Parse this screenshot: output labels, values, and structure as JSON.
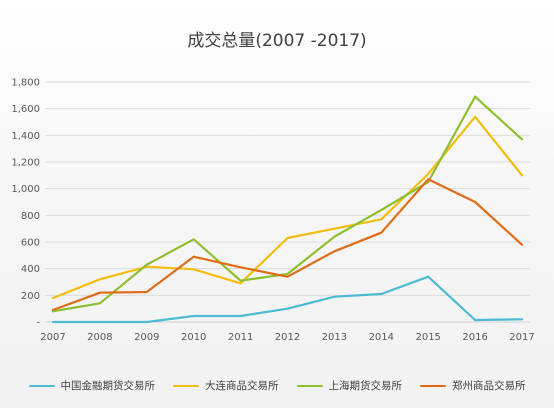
{
  "chart_data": {
    "type": "line",
    "title": "成交总量(2007 -2017)",
    "xlabel": "",
    "ylabel": "",
    "ylim": [
      0,
      1800
    ],
    "y_ticks": [
      0,
      200,
      400,
      600,
      800,
      1000,
      1200,
      1400,
      1600,
      1800
    ],
    "y_tick_labels": [
      "-",
      "200",
      "400",
      "600",
      "800",
      "1,000",
      "1,200",
      "1,400",
      "1,600",
      "1,800"
    ],
    "grid": true,
    "legend_position": "bottom",
    "categories": [
      "2007",
      "2008",
      "2009",
      "2010",
      "2011",
      "2012",
      "2013",
      "2014",
      "2015",
      "2016",
      "2017"
    ],
    "series": [
      {
        "name": "中国金融期货交易所",
        "color": "#4bbbd4",
        "values": [
          0,
          0,
          0,
          45,
          45,
          100,
          190,
          210,
          340,
          15,
          20
        ]
      },
      {
        "name": "大连商品交易所",
        "color": "#f2bd10",
        "values": [
          180,
          320,
          415,
          395,
          290,
          630,
          700,
          770,
          1110,
          1540,
          1100
        ]
      },
      {
        "name": "上海期货交易所",
        "color": "#8dbf2e",
        "values": [
          80,
          140,
          430,
          620,
          310,
          360,
          640,
          840,
          1050,
          1690,
          1370
        ]
      },
      {
        "name": "郑州商品交易所",
        "color": "#e06c17",
        "values": [
          90,
          220,
          225,
          490,
          410,
          340,
          530,
          670,
          1070,
          900,
          580
        ]
      }
    ]
  }
}
